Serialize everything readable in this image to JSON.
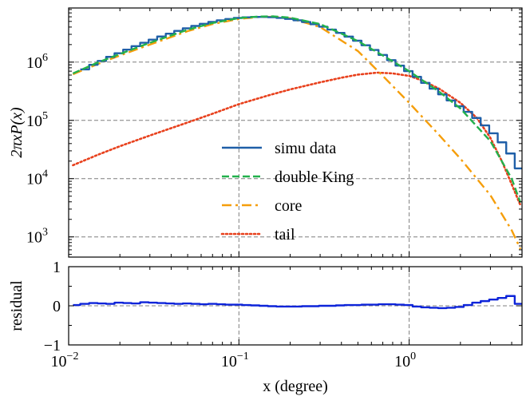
{
  "chart_data": [
    {
      "type": "line",
      "panel": "main",
      "xscale": "log",
      "yscale": "log",
      "xlim": [
        0.01,
        4.6
      ],
      "ylim": [
        450,
        8500000
      ],
      "ylabel": "2πxP(x)",
      "yticks": [
        {
          "value": 1000,
          "base": "10",
          "exp": "3"
        },
        {
          "value": 10000,
          "base": "10",
          "exp": "4"
        },
        {
          "value": 100000,
          "base": "10",
          "exp": "5"
        },
        {
          "value": 1000000,
          "base": "10",
          "exp": "6"
        }
      ],
      "grid": true,
      "legend_position": "center",
      "series": [
        {
          "name": "simu data",
          "style": "step",
          "color": "#1f5fa8",
          "x": [
            0.0117,
            0.0132,
            0.0148,
            0.0166,
            0.0186,
            0.0209,
            0.0234,
            0.0263,
            0.0295,
            0.0331,
            0.0372,
            0.0417,
            0.0468,
            0.0525,
            0.0589,
            0.0661,
            0.0741,
            0.0832,
            0.0933,
            0.1047,
            0.1175,
            0.1318,
            0.1479,
            0.166,
            0.1862,
            0.2089,
            0.2344,
            0.263,
            0.2951,
            0.3311,
            0.3715,
            0.4169,
            0.4677,
            0.5248,
            0.5888,
            0.6607,
            0.7413,
            0.8318,
            0.9333,
            1.0471,
            1.1749,
            1.3183,
            1.4791,
            1.6596,
            1.8621,
            2.0893,
            2.3442,
            2.6303,
            2.9512,
            3.3113,
            3.7154,
            4.1687,
            4.6
          ],
          "y": [
            750000,
            900000,
            1050000,
            1230000,
            1420000,
            1640000,
            1880000,
            2150000,
            2430000,
            2750000,
            3080000,
            3440000,
            3800000,
            4180000,
            4550000,
            4900000,
            5220000,
            5500000,
            5730000,
            5880000,
            5960000,
            5970000,
            5900000,
            5750000,
            5520000,
            5230000,
            4880000,
            4480000,
            4060000,
            3620000,
            3180000,
            2740000,
            2330000,
            1950000,
            1620000,
            1330000,
            1080000,
            870000,
            700000,
            560000,
            440000,
            350000,
            280000,
            220000,
            175000,
            140000,
            110000,
            82000,
            60000,
            42000,
            27000,
            15000,
            4200
          ]
        },
        {
          "name": "double King",
          "style": "dashed",
          "color": "#22b14c",
          "x": [
            0.0106,
            0.015,
            0.02,
            0.03,
            0.05,
            0.07,
            0.1,
            0.13,
            0.16,
            0.2,
            0.3,
            0.5,
            0.7,
            1.0,
            1.5,
            2.0,
            3.0,
            4.0,
            4.5
          ],
          "y": [
            640000,
            1000000,
            1380000,
            2150000,
            3600000,
            4700000,
            5700000,
            6050000,
            6100000,
            5800000,
            4500000,
            2300000,
            1300000,
            700000,
            310000,
            160000,
            44000,
            10000,
            3900
          ]
        },
        {
          "name": "core",
          "style": "dashdot",
          "color": "#f59e0b",
          "x": [
            0.0106,
            0.015,
            0.02,
            0.03,
            0.05,
            0.07,
            0.1,
            0.13,
            0.16,
            0.2,
            0.3,
            0.5,
            0.7,
            1.0,
            1.5,
            2.0,
            3.0,
            4.0,
            4.5
          ],
          "y": [
            620000,
            940000,
            1300000,
            2000000,
            3400000,
            4500000,
            5500000,
            5950000,
            6000000,
            5650000,
            4000000,
            1550000,
            580000,
            200000,
            56000,
            22000,
            5200,
            1300,
            620
          ]
        },
        {
          "name": "tail",
          "style": "dotted",
          "color": "#e8401c",
          "x": [
            0.0106,
            0.015,
            0.02,
            0.03,
            0.05,
            0.07,
            0.1,
            0.15,
            0.2,
            0.3,
            0.4,
            0.5,
            0.65,
            0.8,
            1.0,
            1.2,
            1.5,
            2.0,
            2.5,
            3.0,
            3.5,
            4.0,
            4.5
          ],
          "y": [
            17000,
            26000,
            36000,
            55000,
            92000,
            130000,
            190000,
            270000,
            340000,
            450000,
            540000,
            610000,
            660000,
            640000,
            580000,
            480000,
            350000,
            200000,
            110000,
            50000,
            20000,
            8000,
            3500
          ]
        }
      ]
    },
    {
      "type": "line",
      "panel": "residual",
      "xscale": "log",
      "xlim": [
        0.01,
        4.6
      ],
      "ylim": [
        -1,
        1
      ],
      "xlabel": "x (degree)",
      "ylabel": "residual",
      "yticks": [
        -1,
        0,
        1
      ],
      "xticks": [
        {
          "value": 0.01,
          "base": "10",
          "exp": "−2"
        },
        {
          "value": 0.1,
          "base": "10",
          "exp": "−1"
        },
        {
          "value": 1,
          "base": "10",
          "exp": "0"
        }
      ],
      "grid": true,
      "series": [
        {
          "name": "residual",
          "style": "step",
          "color": "#0d24d9",
          "x": [
            0.0106,
            0.0117,
            0.0132,
            0.0148,
            0.0166,
            0.0186,
            0.0209,
            0.0234,
            0.0263,
            0.0295,
            0.0331,
            0.0372,
            0.0417,
            0.0468,
            0.0525,
            0.0589,
            0.0661,
            0.0741,
            0.0832,
            0.0933,
            0.1047,
            0.1175,
            0.1318,
            0.1479,
            0.166,
            0.1862,
            0.2089,
            0.2344,
            0.263,
            0.2951,
            0.3311,
            0.3715,
            0.4169,
            0.4677,
            0.5248,
            0.5888,
            0.6607,
            0.7413,
            0.8318,
            0.9333,
            1.0471,
            1.1749,
            1.3183,
            1.4791,
            1.6596,
            1.8621,
            2.0893,
            2.3442,
            2.6303,
            2.9512,
            3.3113,
            3.7154,
            4.1687,
            4.6
          ],
          "y": [
            0.02,
            0.05,
            0.07,
            0.06,
            0.05,
            0.08,
            0.07,
            0.06,
            0.09,
            0.08,
            0.07,
            0.06,
            0.05,
            0.06,
            0.05,
            0.04,
            0.05,
            0.04,
            0.03,
            0.03,
            0.02,
            0.01,
            0.0,
            -0.01,
            -0.02,
            -0.02,
            -0.02,
            -0.01,
            -0.01,
            0.0,
            0.0,
            0.01,
            0.02,
            0.02,
            0.03,
            0.03,
            0.04,
            0.04,
            0.03,
            0.02,
            -0.02,
            -0.04,
            -0.05,
            -0.06,
            -0.05,
            -0.03,
            0.02,
            0.08,
            0.12,
            0.16,
            0.2,
            0.25,
            0.05,
            0.05
          ]
        }
      ]
    }
  ]
}
